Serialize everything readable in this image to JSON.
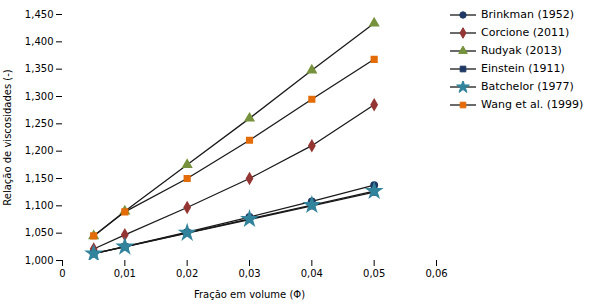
{
  "chart_data": {
    "type": "line",
    "xlabel": "Fração em volume (Φ)",
    "ylabel": "Relação de viscosidades (-)",
    "x": [
      0.005,
      0.01,
      0.02,
      0.03,
      0.04,
      0.05
    ],
    "color": "#1a1a1a",
    "series": [
      {
        "name": "Brinkman (1952)",
        "color": "#1f3864",
        "marker": "circle",
        "values": [
          1.01257,
          1.02532,
          1.05199,
          1.07956,
          1.1081,
          1.13769
        ]
      },
      {
        "name": "Corcione (2011)",
        "color": "#943634",
        "marker": "diamond",
        "values": [
          1.021,
          1.047,
          1.097,
          1.15,
          1.21,
          1.285
        ]
      },
      {
        "name": "Rudyak (2013)",
        "color": "#76923c",
        "marker": "triangle",
        "values": [
          1.045,
          1.09,
          1.175,
          1.26,
          1.348,
          1.434
        ]
      },
      {
        "name": "Einstein (1911)",
        "color": "#1f3864",
        "marker": "square",
        "values": [
          1.0125,
          1.025,
          1.05,
          1.075,
          1.1,
          1.125
        ]
      },
      {
        "name": "Batchelor (1977)",
        "color": "#31849b",
        "marker": "star",
        "values": [
          1.01265,
          1.0253,
          1.05062,
          1.076,
          1.1015,
          1.1271
        ]
      },
      {
        "name": "Wang et al. (1999)",
        "color": "#e36c09",
        "marker": "square",
        "values": [
          1.045,
          1.089,
          1.15,
          1.22,
          1.295,
          1.368
        ]
      }
    ],
    "xlim": [
      0.0,
      0.06
    ],
    "ylim": [
      1.0,
      1.45
    ],
    "xticks": [
      0,
      {
        "value": 0.01,
        "label": "0,01"
      },
      {
        "value": 0.02,
        "label": "0,02"
      },
      {
        "value": 0.03,
        "label": "0,03"
      },
      {
        "value": 0.04,
        "label": "0,04"
      },
      {
        "value": 0.05,
        "label": "0,05"
      },
      {
        "value": 0.06,
        "label": "0,06"
      }
    ],
    "yticks": [
      {
        "value": 1.0,
        "label": "1,000"
      },
      {
        "value": 1.05,
        "label": "1,050"
      },
      {
        "value": 1.1,
        "label": "1,100"
      },
      {
        "value": 1.15,
        "label": "1,150"
      },
      {
        "value": 1.2,
        "label": "1,200"
      },
      {
        "value": 1.25,
        "label": "1,250"
      },
      {
        "value": 1.3,
        "label": "1,300"
      },
      {
        "value": 1.35,
        "label": "1,350"
      },
      {
        "value": 1.4,
        "label": "1,400"
      },
      {
        "value": 1.45,
        "label": "1,450"
      }
    ],
    "grid": false,
    "legend": "right"
  }
}
